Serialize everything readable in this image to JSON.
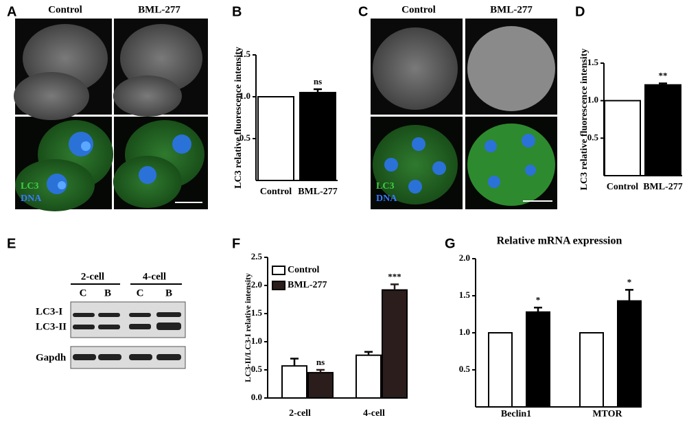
{
  "panels": {
    "A": {
      "letter": "A",
      "columns": [
        "Control",
        "BML-277"
      ],
      "stains": [
        "LC3",
        "DNA"
      ]
    },
    "B": {
      "letter": "B"
    },
    "C": {
      "letter": "C",
      "columns": [
        "Control",
        "BML-277"
      ],
      "stains": [
        "LC3",
        "DNA"
      ]
    },
    "D": {
      "letter": "D"
    },
    "E": {
      "letter": "E",
      "groups": [
        "2-cell",
        "4-cell"
      ],
      "lanes": [
        "C",
        "B",
        "C",
        "B"
      ],
      "bands": [
        "LC3-I",
        "LC3-II",
        "Gapdh"
      ]
    },
    "F": {
      "letter": "F"
    },
    "G": {
      "letter": "G"
    }
  },
  "chart_data": [
    {
      "type": "bar",
      "ylabel": "LC3 relative fluorescence intensity",
      "categories": [
        "Control",
        "BML-277"
      ],
      "values": [
        1.0,
        1.05
      ],
      "errors": [
        0,
        0.04
      ],
      "colors": [
        "#ffffff",
        "#000000"
      ],
      "annotations": [
        null,
        "ns"
      ],
      "ylim": [
        0,
        1.5
      ],
      "yticks": [
        0.5,
        {
          "value": 1.0,
          "label": "1.0"
        },
        1.5
      ]
    },
    {
      "type": "bar",
      "ylabel": "LC3 relative fluorescence intensity",
      "categories": [
        "Control",
        "BML-277"
      ],
      "values": [
        1.0,
        1.21
      ],
      "errors": [
        0,
        0.02
      ],
      "colors": [
        "#ffffff",
        "#000000"
      ],
      "annotations": [
        null,
        "**"
      ],
      "ylim": [
        0,
        1.5
      ],
      "yticks": [
        0.5,
        {
          "value": 1.0,
          "label": "1.0"
        },
        1.5
      ]
    },
    {
      "type": "grouped_bar",
      "ylabel": "LC3-II/LC3-I relative intensity",
      "categories": [
        "2-cell",
        "4-cell"
      ],
      "series": [
        {
          "name": "Control",
          "color": "#ffffff",
          "values": [
            0.57,
            0.76
          ],
          "errors": [
            0.13,
            0.06
          ],
          "annotations": [
            null,
            null
          ]
        },
        {
          "name": "BML-277",
          "color": "#2b1d1b",
          "values": [
            0.45,
            1.92
          ],
          "errors": [
            0.05,
            0.1
          ],
          "annotations": [
            "ns",
            "***"
          ]
        }
      ],
      "ylim": [
        0,
        2.5
      ],
      "yticks": [
        {
          "value": 0,
          "label": "0.0"
        },
        0.5,
        {
          "value": 1.0,
          "label": "1.0"
        },
        1.5,
        {
          "value": 2.0,
          "label": "2.0"
        },
        2.5
      ],
      "legend": "top-left"
    },
    {
      "type": "grouped_bar",
      "title": "Relative mRNA expression",
      "categories": [
        "Beclin1",
        "MTOR"
      ],
      "series": [
        {
          "color": "#ffffff",
          "values": [
            1.0,
            1.0
          ],
          "errors": [
            0,
            0
          ],
          "annotations": [
            null,
            null
          ]
        },
        {
          "color": "#000000",
          "values": [
            1.28,
            1.43
          ],
          "errors": [
            0.06,
            0.15
          ],
          "annotations": [
            "*",
            "*"
          ]
        }
      ],
      "ylim": [
        0,
        2.0
      ],
      "yticks": [
        0.5,
        {
          "value": 1.0,
          "label": "1.0"
        },
        1.5,
        {
          "value": 2.0,
          "label": "2.0"
        }
      ]
    }
  ]
}
